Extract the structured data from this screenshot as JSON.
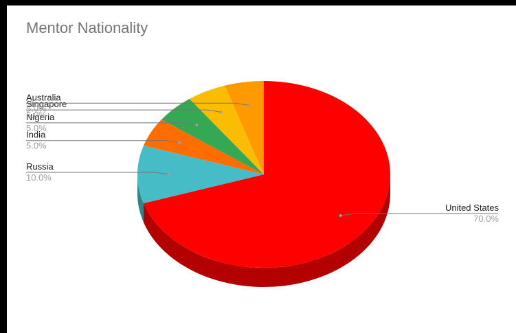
{
  "chart_data": {
    "type": "pie",
    "title": "Mentor Nationality",
    "three_d": true,
    "slices": [
      {
        "label": "United States",
        "value": 70.0,
        "pct_label": "70.0%",
        "color": "#ff0000",
        "side_color": "#b30000"
      },
      {
        "label": "Russia",
        "value": 10.0,
        "pct_label": "10.0%",
        "color": "#46bdc6",
        "side_color": "#318489"
      },
      {
        "label": "India",
        "value": 5.0,
        "pct_label": "5.0%",
        "color": "#ff6d01",
        "side_color": "#b34c01"
      },
      {
        "label": "Nigeria",
        "value": 5.0,
        "pct_label": "5.0%",
        "color": "#34a853",
        "side_color": "#24763a"
      },
      {
        "label": "Singapore",
        "value": 5.0,
        "pct_label": "5.0%",
        "color": "#fbbc04",
        "side_color": "#b08403"
      },
      {
        "label": "Australia",
        "value": 5.0,
        "pct_label": "5.0%",
        "color": "#ff9900",
        "side_color": "#b36b00"
      }
    ]
  }
}
